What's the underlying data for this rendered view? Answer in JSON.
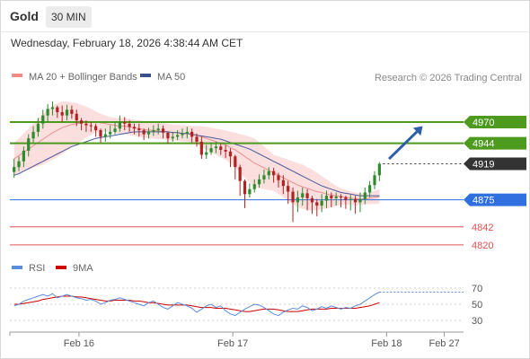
{
  "header": {
    "symbol": "Gold",
    "timeframe": "30 MIN",
    "datetime": "Wednesday, February 18, 2026 4:38:44 AM CET"
  },
  "colors": {
    "candle_up": "#2e8b2e",
    "candle_down": "#b22222",
    "ma20": "#e89090",
    "bollinger_fill": "#fbdede",
    "ma50": "#4a5a9a",
    "resistance": "#4c9a1e",
    "last_price": "#333333",
    "pivot": "#2f6fe0",
    "support": "#e05050",
    "arrow": "#2f5fa8",
    "rsi": "#5b8bd9",
    "rsi_ma": "#cc0000"
  },
  "chart_data": [
    {
      "type": "candlestick",
      "legend": [
        {
          "name": "MA 20 + Bollinger Bands",
          "color": "#f08a8a"
        },
        {
          "name": "MA 50",
          "color": "#3a4f8a"
        }
      ],
      "legend_placement": "top-left",
      "credit": "Research © 2026 Trading Central",
      "ylim": [
        4810,
        5005
      ],
      "x_ticks": [
        {
          "label": "Feb 16",
          "bar": 14
        },
        {
          "label": "Feb 17",
          "bar": 46
        },
        {
          "label": "Feb 18",
          "bar": 78
        },
        {
          "label": "Feb 27",
          "bar": 90
        }
      ],
      "bars_total": 94,
      "close": [
        4915,
        4922,
        4935,
        4950,
        4958,
        4968,
        4978,
        4986,
        4988,
        4982,
        4978,
        4985,
        4980,
        4972,
        4968,
        4966,
        4965,
        4960,
        4952,
        4955,
        4958,
        4962,
        4970,
        4968,
        4964,
        4962,
        4960,
        4955,
        4958,
        4960,
        4962,
        4957,
        4950,
        4952,
        4954,
        4956,
        4958,
        4952,
        4946,
        4930,
        4933,
        4938,
        4940,
        4936,
        4934,
        4928,
        4915,
        4898,
        4882,
        4888,
        4894,
        4900,
        4905,
        4910,
        4905,
        4899,
        4892,
        4885,
        4872,
        4878,
        4883,
        4877,
        4872,
        4868,
        4874,
        4880,
        4877,
        4879,
        4878,
        4875,
        4876,
        4872,
        4876,
        4884,
        4893,
        4905,
        4919
      ],
      "ohlc_range": [
        [
          4902,
          4925
        ],
        [
          4910,
          4928
        ],
        [
          4915,
          4940
        ],
        [
          4928,
          4955
        ],
        [
          4945,
          4965
        ],
        [
          4952,
          4975
        ],
        [
          4962,
          4985
        ],
        [
          4970,
          4992
        ],
        [
          4978,
          4995
        ],
        [
          4975,
          4990
        ],
        [
          4970,
          4990
        ],
        [
          4972,
          4991
        ],
        [
          4974,
          4990
        ],
        [
          4965,
          4985
        ],
        [
          4960,
          4975
        ],
        [
          4958,
          4972
        ],
        [
          4958,
          4970
        ],
        [
          4952,
          4968
        ],
        [
          4945,
          4962
        ],
        [
          4946,
          4962
        ],
        [
          4950,
          4966
        ],
        [
          4955,
          4970
        ],
        [
          4958,
          4978
        ],
        [
          4960,
          4976
        ],
        [
          4958,
          4972
        ],
        [
          4955,
          4968
        ],
        [
          4952,
          4968
        ],
        [
          4948,
          4962
        ],
        [
          4950,
          4963
        ],
        [
          4953,
          4966
        ],
        [
          4955,
          4968
        ],
        [
          4950,
          4966
        ],
        [
          4944,
          4958
        ],
        [
          4946,
          4958
        ],
        [
          4948,
          4960
        ],
        [
          4950,
          4962
        ],
        [
          4950,
          4964
        ],
        [
          4945,
          4962
        ],
        [
          4940,
          4956
        ],
        [
          4925,
          4952
        ],
        [
          4925,
          4942
        ],
        [
          4930,
          4945
        ],
        [
          4932,
          4946
        ],
        [
          4930,
          4944
        ],
        [
          4926,
          4942
        ],
        [
          4915,
          4938
        ],
        [
          4900,
          4930
        ],
        [
          4880,
          4918
        ],
        [
          4865,
          4900
        ],
        [
          4878,
          4895
        ],
        [
          4884,
          4900
        ],
        [
          4890,
          4906
        ],
        [
          4895,
          4912
        ],
        [
          4900,
          4915
        ],
        [
          4896,
          4914
        ],
        [
          4890,
          4908
        ],
        [
          4882,
          4905
        ],
        [
          4870,
          4898
        ],
        [
          4848,
          4890
        ],
        [
          4860,
          4886
        ],
        [
          4868,
          4890
        ],
        [
          4862,
          4888
        ],
        [
          4858,
          4880
        ],
        [
          4855,
          4876
        ],
        [
          4860,
          4882
        ],
        [
          4865,
          4886
        ],
        [
          4866,
          4884
        ],
        [
          4868,
          4884
        ],
        [
          4866,
          4882
        ],
        [
          4864,
          4880
        ],
        [
          4862,
          4881
        ],
        [
          4858,
          4880
        ],
        [
          4860,
          4884
        ],
        [
          4870,
          4890
        ],
        [
          4878,
          4898
        ],
        [
          4888,
          4910
        ],
        [
          4898,
          4921
        ]
      ],
      "ma20": [
        4925,
        4929,
        4933,
        4937,
        4941,
        4945,
        4949,
        4953,
        4957,
        4960,
        4963,
        4965,
        4967,
        4968,
        4969,
        4970,
        4970,
        4970,
        4969,
        4968,
        4967,
        4966,
        4965,
        4965,
        4964,
        4963,
        4962,
        4961,
        4960,
        4960,
        4959,
        4959,
        4958,
        4957,
        4957,
        4956,
        4956,
        4955,
        4954,
        4952,
        4950,
        4948,
        4946,
        4944,
        4942,
        4939,
        4936,
        4932,
        4928,
        4924,
        4920,
        4917,
        4914,
        4911,
        4908,
        4905,
        4902,
        4899,
        4896,
        4893,
        4891,
        4889,
        4887,
        4885,
        4884,
        4882,
        4881,
        4880,
        4879,
        4878,
        4877,
        4876,
        4876,
        4876,
        4877,
        4878,
        4879
      ],
      "bollinger_upper": [
        4945,
        4950,
        4956,
        4962,
        4968,
        4974,
        4980,
        4985,
        4990,
        4993,
        4995,
        4995,
        4994,
        4993,
        4991,
        4989,
        4986,
        4983,
        4980,
        4978,
        4976,
        4975,
        4975,
        4975,
        4974,
        4973,
        4972,
        4971,
        4970,
        4970,
        4969,
        4969,
        4968,
        4967,
        4967,
        4966,
        4966,
        4965,
        4965,
        4965,
        4964,
        4963,
        4962,
        4961,
        4960,
        4958,
        4957,
        4955,
        4954,
        4952,
        4950,
        4945,
        4940,
        4935,
        4930,
        4928,
        4926,
        4924,
        4922,
        4920,
        4918,
        4915,
        4912,
        4908,
        4904,
        4900,
        4896,
        4892,
        4889,
        4887,
        4885,
        4884,
        4883,
        4883,
        4884,
        4886,
        4888
      ],
      "bollinger_lower": [
        4905,
        4908,
        4910,
        4912,
        4914,
        4916,
        4918,
        4921,
        4924,
        4927,
        4931,
        4935,
        4940,
        4943,
        4947,
        4951,
        4954,
        4957,
        4958,
        4958,
        4958,
        4957,
        4955,
        4955,
        4954,
        4953,
        4952,
        4951,
        4950,
        4950,
        4949,
        4949,
        4948,
        4947,
        4947,
        4946,
        4946,
        4945,
        4943,
        4939,
        4936,
        4933,
        4930,
        4927,
        4924,
        4920,
        4915,
        4909,
        4902,
        4896,
        4890,
        4889,
        4888,
        4887,
        4886,
        4882,
        4878,
        4874,
        4870,
        4866,
        4864,
        4863,
        4862,
        4862,
        4864,
        4864,
        4866,
        4868,
        4869,
        4869,
        4869,
        4868,
        4869,
        4869,
        4870,
        4870,
        4870
      ],
      "ma50": [
        4905,
        4907,
        4910,
        4913,
        4916,
        4919,
        4922,
        4925,
        4928,
        4931,
        4934,
        4937,
        4940,
        4942,
        4944,
        4946,
        4948,
        4950,
        4951,
        4952,
        4953,
        4954,
        4955,
        4956,
        4957,
        4958,
        4958,
        4958,
        4958,
        4958,
        4958,
        4958,
        4958,
        4957,
        4957,
        4956,
        4956,
        4955,
        4954,
        4953,
        4952,
        4951,
        4950,
        4949,
        4947,
        4945,
        4943,
        4941,
        4939,
        4937,
        4934,
        4931,
        4928,
        4925,
        4922,
        4919,
        4916,
        4913,
        4910,
        4907,
        4904,
        4901,
        4898,
        4895,
        4892,
        4890,
        4888,
        4886,
        4884,
        4883,
        4882,
        4881,
        4880,
        4880,
        4880,
        4880,
        4880
      ],
      "levels": [
        {
          "value": 4970,
          "label": "4970",
          "kind": "resistance"
        },
        {
          "value": 4944,
          "label": "4944",
          "kind": "resistance"
        },
        {
          "value": 4919,
          "label": "4919",
          "kind": "last"
        },
        {
          "value": 4875,
          "label": "4875",
          "kind": "pivot"
        },
        {
          "value": 4842,
          "label": "4842",
          "kind": "support"
        },
        {
          "value": 4820,
          "label": "4820",
          "kind": "support"
        }
      ],
      "projection_arrow": {
        "from": 4925,
        "to": 4965,
        "start_bar": 78,
        "end_bar": 85
      }
    },
    {
      "type": "line",
      "legend": [
        {
          "name": "RSI",
          "color": "#5b8bd9"
        },
        {
          "name": "9MA",
          "color": "#cc0000"
        }
      ],
      "ylim": [
        20,
        80
      ],
      "y_ticks": [
        "70",
        "50",
        "30"
      ],
      "rsi": [
        48,
        50,
        54,
        56,
        58,
        60,
        62,
        60,
        63,
        58,
        60,
        62,
        60,
        58,
        57,
        55,
        56,
        54,
        50,
        52,
        55,
        56,
        58,
        56,
        54,
        52,
        50,
        48,
        52,
        54,
        50,
        46,
        44,
        48,
        52,
        50,
        48,
        45,
        40,
        44,
        48,
        50,
        46,
        48,
        42,
        38,
        36,
        40,
        44,
        47,
        50,
        49,
        46,
        42,
        38,
        36,
        40,
        43,
        45,
        44,
        48,
        46,
        42,
        44,
        47,
        45,
        48,
        46,
        44,
        46,
        45,
        48,
        50,
        54,
        58,
        62,
        65
      ],
      "rsi_ma": [
        50,
        50,
        51,
        52,
        53,
        54,
        56,
        57,
        58,
        59,
        60,
        60,
        60,
        59,
        59,
        58,
        57,
        56,
        55,
        54,
        54,
        55,
        55,
        55,
        55,
        54,
        54,
        53,
        52,
        52,
        51,
        50,
        49,
        49,
        49,
        49,
        49,
        48,
        47,
        46,
        46,
        46,
        45,
        45,
        45,
        44,
        43,
        42,
        41,
        41,
        42,
        43,
        44,
        44,
        44,
        43,
        42,
        41,
        41,
        41,
        42,
        43,
        44,
        44,
        44,
        44,
        45,
        45,
        45,
        45,
        45,
        45,
        46,
        47,
        48,
        50,
        52
      ],
      "rsi_last": 65
    }
  ]
}
